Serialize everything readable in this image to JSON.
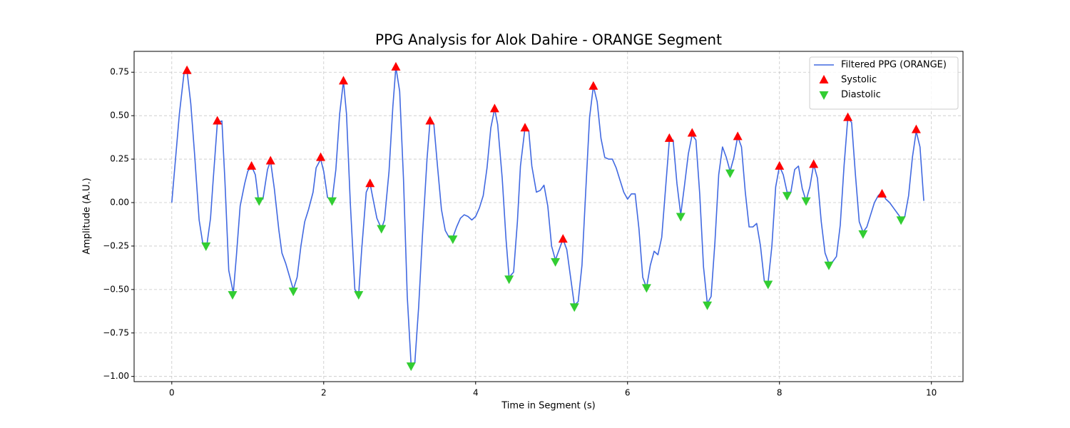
{
  "chart_data": {
    "type": "line",
    "title": "PPG Analysis for Alok Dahire - ORANGE Segment",
    "x_label": "Time in Segment (s)",
    "y_label": "Amplitude (A.U.)",
    "xlim": [
      -0.496,
      10.416
    ],
    "ylim": [
      -1.03,
      0.87
    ],
    "xticks": [
      0,
      2,
      4,
      6,
      8,
      10
    ],
    "yticks": [
      {
        "value": -1.0,
        "label": "−1.00"
      },
      {
        "value": -0.75,
        "label": "−0.75"
      },
      {
        "value": -0.5,
        "label": "−0.50"
      },
      {
        "value": -0.25,
        "label": "−0.25"
      },
      {
        "value": 0,
        "label": "0.00"
      },
      {
        "value": 0.25,
        "label": "0.25"
      },
      {
        "value": 0.5,
        "label": "0.50"
      },
      {
        "value": 0.75,
        "label": "0.75"
      }
    ],
    "grid": true,
    "legend": "upper right",
    "series": [
      {
        "name": "Filtered PPG (ORANGE)",
        "kind": "line",
        "color": "#4169e1",
        "x": [
          0,
          0.1,
          0.16,
          0.2,
          0.25,
          0.3,
          0.36,
          0.41,
          0.46,
          0.51,
          0.54,
          0.6,
          0.66,
          0.7,
          0.75,
          0.81,
          0.85,
          0.9,
          0.96,
          1.0,
          1.05,
          1.1,
          1.14,
          1.2,
          1.26,
          1.3,
          1.35,
          1.41,
          1.45,
          1.5,
          1.56,
          1.6,
          1.65,
          1.7,
          1.75,
          1.8,
          1.86,
          1.9,
          1.96,
          2.0,
          2.05,
          2.11,
          2.16,
          2.21,
          2.26,
          2.3,
          2.35,
          2.41,
          2.46,
          2.5,
          2.56,
          2.61,
          2.65,
          2.7,
          2.76,
          2.8,
          2.86,
          2.91,
          2.95,
          3.0,
          3.05,
          3.1,
          3.15,
          3.2,
          3.25,
          3.3,
          3.36,
          3.4,
          3.45,
          3.5,
          3.55,
          3.6,
          3.65,
          3.7,
          3.75,
          3.8,
          3.85,
          3.9,
          3.95,
          4.0,
          4.05,
          4.1,
          4.15,
          4.2,
          4.25,
          4.29,
          4.35,
          4.4,
          4.44,
          4.5,
          4.55,
          4.59,
          4.65,
          4.7,
          4.74,
          4.8,
          4.85,
          4.9,
          4.95,
          5.0,
          5.05,
          5.1,
          5.15,
          5.2,
          5.25,
          5.3,
          5.35,
          5.4,
          5.45,
          5.5,
          5.55,
          5.6,
          5.65,
          5.7,
          5.75,
          5.8,
          5.85,
          5.9,
          5.95,
          6.0,
          6.05,
          6.1,
          6.15,
          6.2,
          6.25,
          6.3,
          6.35,
          6.4,
          6.45,
          6.5,
          6.55,
          6.6,
          6.65,
          6.7,
          6.75,
          6.8,
          6.85,
          6.9,
          6.95,
          7.0,
          7.05,
          7.1,
          7.15,
          7.2,
          7.25,
          7.3,
          7.35,
          7.4,
          7.45,
          7.5,
          7.55,
          7.6,
          7.65,
          7.7,
          7.75,
          7.8,
          7.85,
          7.9,
          7.95,
          8.0,
          8.05,
          8.1,
          8.15,
          8.2,
          8.25,
          8.3,
          8.35,
          8.4,
          8.45,
          8.5,
          8.55,
          8.6,
          8.65,
          8.7,
          8.75,
          8.8,
          8.85,
          8.9,
          8.95,
          9.0,
          9.05,
          9.1,
          9.15,
          9.2,
          9.25,
          9.3,
          9.35,
          9.4,
          9.45,
          9.5,
          9.55,
          9.6,
          9.65,
          9.7,
          9.75,
          9.8,
          9.85,
          9.9
        ],
        "values": [
          0,
          0.51,
          0.74,
          0.76,
          0.57,
          0.28,
          -0.1,
          -0.24,
          -0.25,
          -0.09,
          0.1,
          0.46,
          0.47,
          0.12,
          -0.39,
          -0.52,
          -0.31,
          -0.02,
          0.11,
          0.18,
          0.21,
          0.16,
          0.02,
          0.02,
          0.19,
          0.24,
          0.08,
          -0.16,
          -0.29,
          -0.35,
          -0.44,
          -0.5,
          -0.43,
          -0.25,
          -0.11,
          -0.04,
          0.06,
          0.2,
          0.25,
          0.18,
          0.03,
          0.01,
          0.19,
          0.51,
          0.7,
          0.51,
          0,
          -0.5,
          -0.53,
          -0.27,
          0.06,
          0.11,
          0.02,
          -0.09,
          -0.15,
          -0.1,
          0.18,
          0.55,
          0.78,
          0.64,
          0.14,
          -0.54,
          -0.93,
          -0.92,
          -0.6,
          -0.19,
          0.25,
          0.47,
          0.45,
          0.2,
          -0.04,
          -0.16,
          -0.2,
          -0.2,
          -0.14,
          -0.09,
          -0.07,
          -0.08,
          -0.1,
          -0.08,
          -0.03,
          0.04,
          0.2,
          0.43,
          0.54,
          0.45,
          0.14,
          -0.21,
          -0.43,
          -0.4,
          -0.11,
          0.21,
          0.43,
          0.41,
          0.21,
          0.06,
          0.07,
          0.1,
          -0.02,
          -0.25,
          -0.33,
          -0.27,
          -0.21,
          -0.27,
          -0.43,
          -0.59,
          -0.57,
          -0.36,
          0.07,
          0.49,
          0.67,
          0.58,
          0.37,
          0.26,
          0.25,
          0.25,
          0.2,
          0.13,
          0.06,
          0.02,
          0.05,
          0.05,
          -0.15,
          -0.43,
          -0.49,
          -0.36,
          -0.28,
          -0.3,
          -0.2,
          0.08,
          0.36,
          0.36,
          0.11,
          -0.07,
          0.1,
          0.28,
          0.39,
          0.36,
          0.05,
          -0.37,
          -0.58,
          -0.54,
          -0.23,
          0.16,
          0.32,
          0.26,
          0.18,
          0.26,
          0.38,
          0.32,
          0.06,
          -0.14,
          -0.14,
          -0.12,
          -0.25,
          -0.45,
          -0.46,
          -0.25,
          0.09,
          0.21,
          0.16,
          0.06,
          0.06,
          0.19,
          0.21,
          0.08,
          0.01,
          0.09,
          0.22,
          0.14,
          -0.11,
          -0.29,
          -0.35,
          -0.34,
          -0.31,
          -0.13,
          0.21,
          0.49,
          0.46,
          0.16,
          -0.11,
          -0.17,
          -0.14,
          -0.07,
          0,
          0.04,
          0.06,
          0.02,
          0,
          -0.03,
          -0.06,
          -0.09,
          -0.08,
          0.04,
          0.26,
          0.41,
          0.32,
          0.01
        ]
      },
      {
        "name": "Systolic",
        "kind": "scatter",
        "marker": "up",
        "color": "#ff0000",
        "x": [
          0.2,
          0.6,
          1.05,
          1.3,
          1.96,
          2.26,
          2.61,
          2.95,
          3.4,
          4.25,
          4.65,
          5.15,
          5.55,
          6.55,
          6.85,
          7.45,
          8.0,
          8.45,
          8.9,
          9.35,
          9.8
        ],
        "values": [
          0.76,
          0.47,
          0.21,
          0.24,
          0.26,
          0.7,
          0.11,
          0.78,
          0.47,
          0.54,
          0.43,
          -0.21,
          0.67,
          0.37,
          0.4,
          0.38,
          0.21,
          0.22,
          0.49,
          0.05,
          0.42
        ]
      },
      {
        "name": "Diastolic",
        "kind": "scatter",
        "marker": "down",
        "color": "#32cd32",
        "x": [
          0.45,
          0.8,
          1.15,
          1.6,
          2.11,
          2.46,
          2.76,
          3.15,
          3.7,
          4.44,
          5.05,
          5.3,
          6.25,
          6.7,
          7.05,
          7.35,
          7.85,
          8.1,
          8.35,
          8.65,
          9.1,
          9.6
        ],
        "values": [
          -0.25,
          -0.53,
          0.01,
          -0.51,
          0.01,
          -0.53,
          -0.15,
          -0.94,
          -0.21,
          -0.44,
          -0.34,
          -0.6,
          -0.49,
          -0.08,
          -0.59,
          0.17,
          -0.47,
          0.04,
          0.01,
          -0.36,
          -0.18,
          -0.1
        ]
      }
    ]
  }
}
